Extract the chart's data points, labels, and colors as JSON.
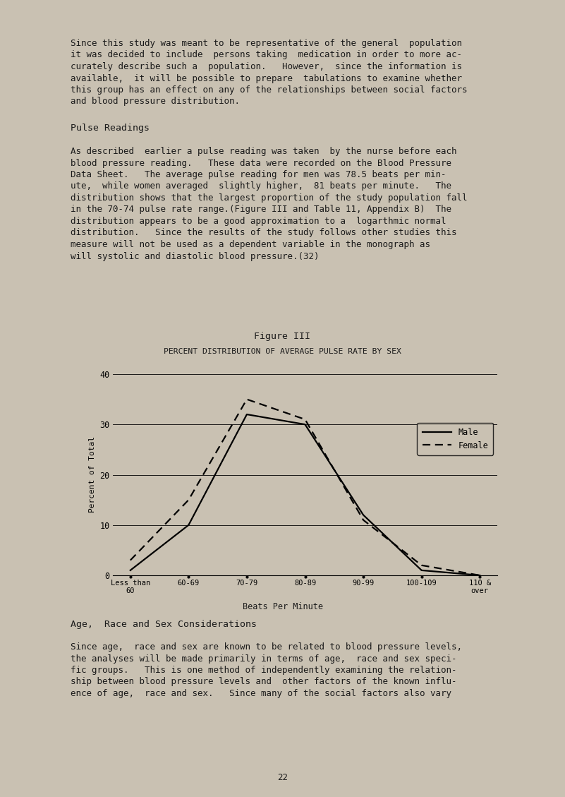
{
  "page_background": "#c9c1b2",
  "text_color": "#1a1a1a",
  "figure_title": "Figure III",
  "chart_title": "PERCENT DISTRIBUTION OF AVERAGE PULSE RATE BY SEX",
  "ylabel": "Percent of Total",
  "xlabel": "Beats Per Minute",
  "categories": [
    "Less than\n60",
    "60-69",
    "70-79",
    "80-89",
    "90-99",
    "100-109",
    "110 &\nover"
  ],
  "male_values": [
    1,
    10,
    32,
    30,
    12,
    1,
    0
  ],
  "female_values": [
    3,
    15,
    35,
    31,
    11,
    2,
    0
  ],
  "ylim": [
    0,
    40
  ],
  "yticks": [
    0,
    10,
    20,
    30,
    40
  ],
  "male_color": "#000000",
  "female_color": "#000000",
  "page_number": "22",
  "para1_lines": [
    "Since this study was meant to be representative of the general  population",
    "it was decided to include  persons taking  medication in order to more ac-",
    "curately describe such a  population.   However,  since the information is",
    "available,  it will be possible to prepare  tabulations to examine whether",
    "this group has an effect on any of the relationships between social factors",
    "and blood pressure distribution."
  ],
  "heading1": "Pulse Readings",
  "para2_lines": [
    "As described  earlier a pulse reading was taken  by the nurse before each",
    "blood pressure reading.   These data were recorded on the Blood Pressure",
    "Data Sheet.   The average pulse reading for men was 78.5 beats per min-",
    "ute,  while women averaged  slightly higher,  81 beats per minute.   The",
    "distribution shows that the largest proportion of the study population fall",
    "in the 70-74 pulse rate range.(Figure III and Table 11, Appendix B)  The",
    "distribution appears to be a good approximation to a  logarthmic normal",
    "distribution.   Since the results of the study follows other studies this",
    "measure will not be used as a dependent variable in the monograph as",
    "will systolic and diastolic blood pressure.(32)"
  ],
  "heading2": "Age,  Race and Sex Considerations",
  "para3_lines": [
    "Since age,  race and sex are known to be related to blood pressure levels,",
    "the analyses will be made primarily in terms of age,  race and sex speci-",
    "fic groups.   This is one method of independently examining the relation-",
    "ship between blood pressure levels and  other factors of the known influ-",
    "ence of age,  race and sex.   Since many of the social factors also vary"
  ]
}
